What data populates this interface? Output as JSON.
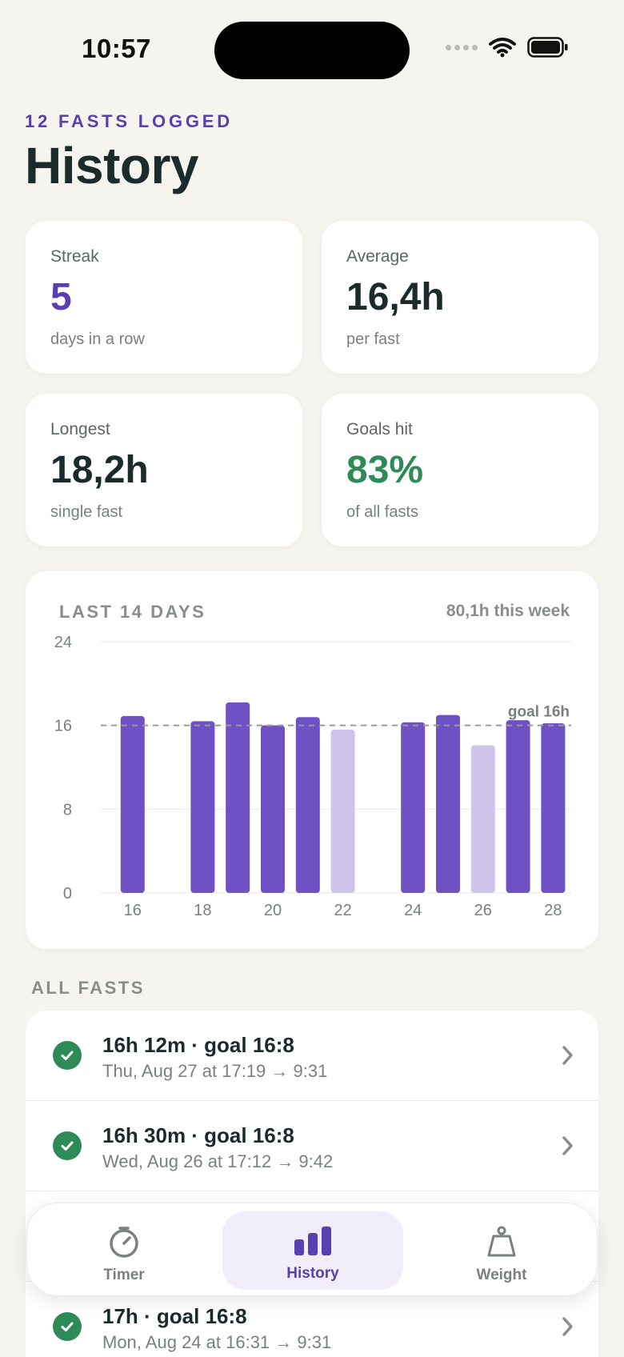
{
  "status_bar": {
    "time": "10:57"
  },
  "header": {
    "eyebrow": "12 FASTS LOGGED",
    "title": "History"
  },
  "stats": [
    {
      "label": "Streak",
      "value": "5",
      "sub": "days in a row",
      "color": "#5A3FB0"
    },
    {
      "label": "Average",
      "value": "16,4h",
      "sub": "per fast",
      "color": "#1B2A2B"
    },
    {
      "label": "Longest",
      "value": "18,2h",
      "sub": "single fast",
      "color": "#1B2A2B"
    },
    {
      "label": "Goals hit",
      "value": "83%",
      "sub": "of all fasts",
      "color": "#2E8B57"
    }
  ],
  "chart": {
    "title": "LAST 14 DAYS",
    "summary": "80,1h this week",
    "goal_label": "goal 16h"
  },
  "chart_data": {
    "type": "bar",
    "x": [
      15,
      16,
      17,
      18,
      19,
      20,
      21,
      22,
      23,
      24,
      25,
      26,
      27,
      28
    ],
    "x_tick_labels": [
      "16",
      "18",
      "20",
      "22",
      "24",
      "26",
      "28"
    ],
    "y_tick_labels": [
      "24",
      "16",
      "8",
      "0"
    ],
    "values": [
      null,
      16.9,
      null,
      16.4,
      18.2,
      16.0,
      16.8,
      15.6,
      null,
      16.3,
      17.0,
      14.1,
      16.5,
      16.2
    ],
    "goal_met": [
      null,
      true,
      null,
      true,
      true,
      true,
      true,
      false,
      null,
      true,
      true,
      false,
      true,
      true
    ],
    "goal": 16,
    "ylim": [
      0,
      24
    ],
    "colors": {
      "met": "#6E52C3",
      "missed": "#CFC4EB",
      "goal_line": "#9A9A9A",
      "grid": "#EFEFEF"
    },
    "grid": true
  },
  "list": {
    "section_label": "ALL FASTS",
    "rows": [
      {
        "title": "16h 12m · goal 16:8",
        "sub": "Thu, Aug 27 at 17:19 → 9:31"
      },
      {
        "title": "16h 30m · goal 16:8",
        "sub": "Wed, Aug 26 at 17:12 → 9:42"
      },
      {
        "title": "",
        "sub": ""
      },
      {
        "title": "17h · goal 16:8",
        "sub": "Mon, Aug 24 at 16:31 → 9:31"
      }
    ]
  },
  "tabbar": {
    "tabs": [
      {
        "label": "Timer",
        "icon": "timer-icon"
      },
      {
        "label": "History",
        "icon": "bar-chart-icon"
      },
      {
        "label": "Weight",
        "icon": "scale-icon"
      }
    ],
    "active": "History"
  }
}
